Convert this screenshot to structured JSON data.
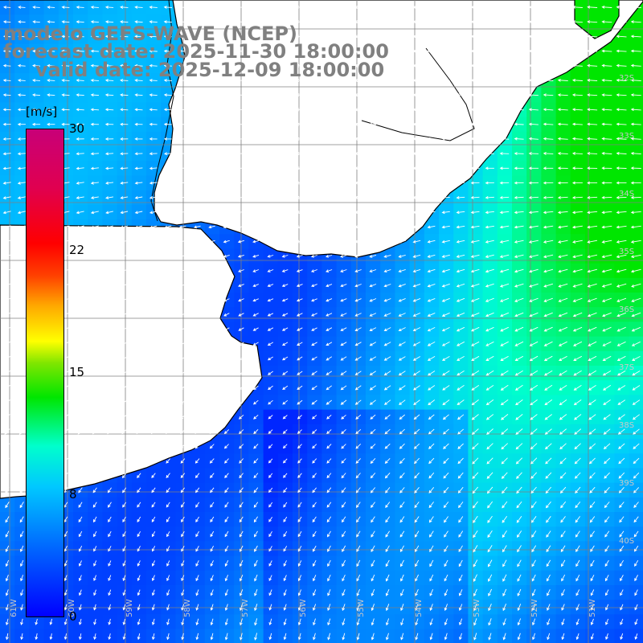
{
  "header": {
    "model": "modelo GEFS-WAVE (NCEP)",
    "forecast": "forecast date: 2025-11-30 18:00:00",
    "valid": "valid date: 2025-12-09 18:00:00"
  },
  "colorbar": {
    "unit": "[m/s]",
    "ticks": [
      {
        "value": 0,
        "label": "0"
      },
      {
        "value": 8,
        "label": "8"
      },
      {
        "value": 15,
        "label": "15"
      },
      {
        "value": 22,
        "label": "22"
      },
      {
        "value": 30,
        "label": "30"
      }
    ],
    "min": 0,
    "max": 30,
    "colors": [
      "#0000ff",
      "#00c8ff",
      "#00ffcc",
      "#00e600",
      "#ffff00",
      "#ff4000",
      "#ff0000",
      "#c80078"
    ]
  },
  "map": {
    "region": "South Atlantic — Uruguay / Rio de la Plata / Buenos Aires coast",
    "lat_labels": [
      "32S",
      "33S",
      "34S",
      "35S",
      "36S",
      "37S",
      "38S",
      "39S",
      "40S"
    ],
    "lon_labels": [
      "61W",
      "60W",
      "59W",
      "58W",
      "57W",
      "56W",
      "55W",
      "54W",
      "53W",
      "52W",
      "51W"
    ],
    "land_color": "#ffffff",
    "grid_color": "#808080",
    "arrow_color": "#ffffff"
  }
}
